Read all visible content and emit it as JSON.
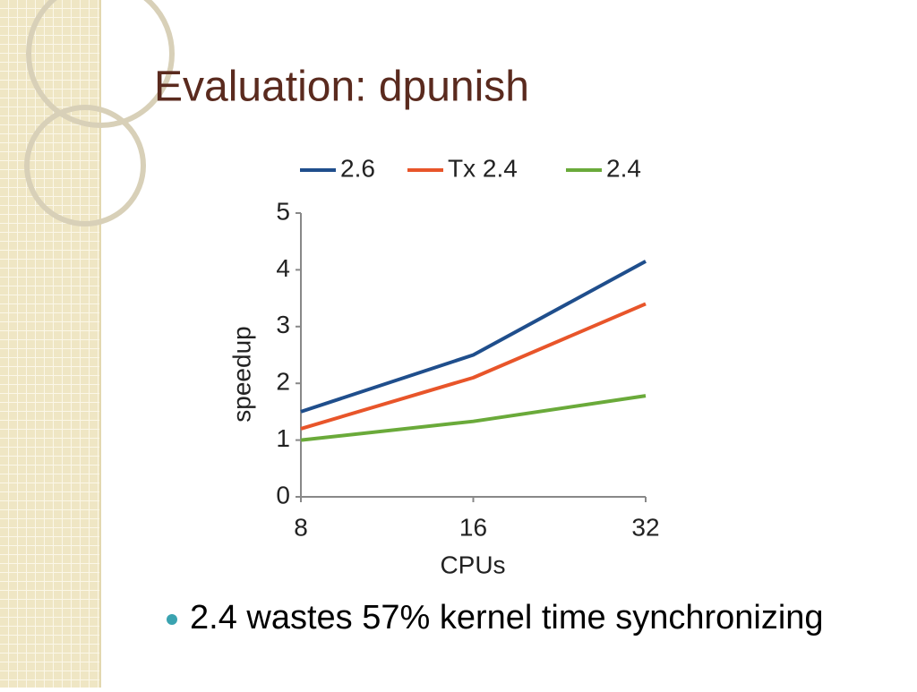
{
  "title": "Evaluation: dpunish",
  "bullets": [
    "2.4 wastes 57% kernel time synchronizing"
  ],
  "chart_data": {
    "type": "line",
    "x_label": "CPUs",
    "y_label": "speedup",
    "categories": [
      "8",
      "16",
      "32"
    ],
    "series": [
      {
        "name": "2.6",
        "color": "#1f4e8c",
        "values": [
          1.5,
          2.5,
          4.15
        ]
      },
      {
        "name": "Tx 2.4",
        "color": "#e8552a",
        "values": [
          1.2,
          2.1,
          3.4
        ]
      },
      {
        "name": "2.4",
        "color": "#6aaa3a",
        "values": [
          1.0,
          1.33,
          1.78
        ]
      }
    ],
    "ylim": [
      0,
      5
    ],
    "yticks": [
      0,
      1,
      2,
      3,
      4,
      5
    ],
    "legend": "top",
    "grid": false
  }
}
